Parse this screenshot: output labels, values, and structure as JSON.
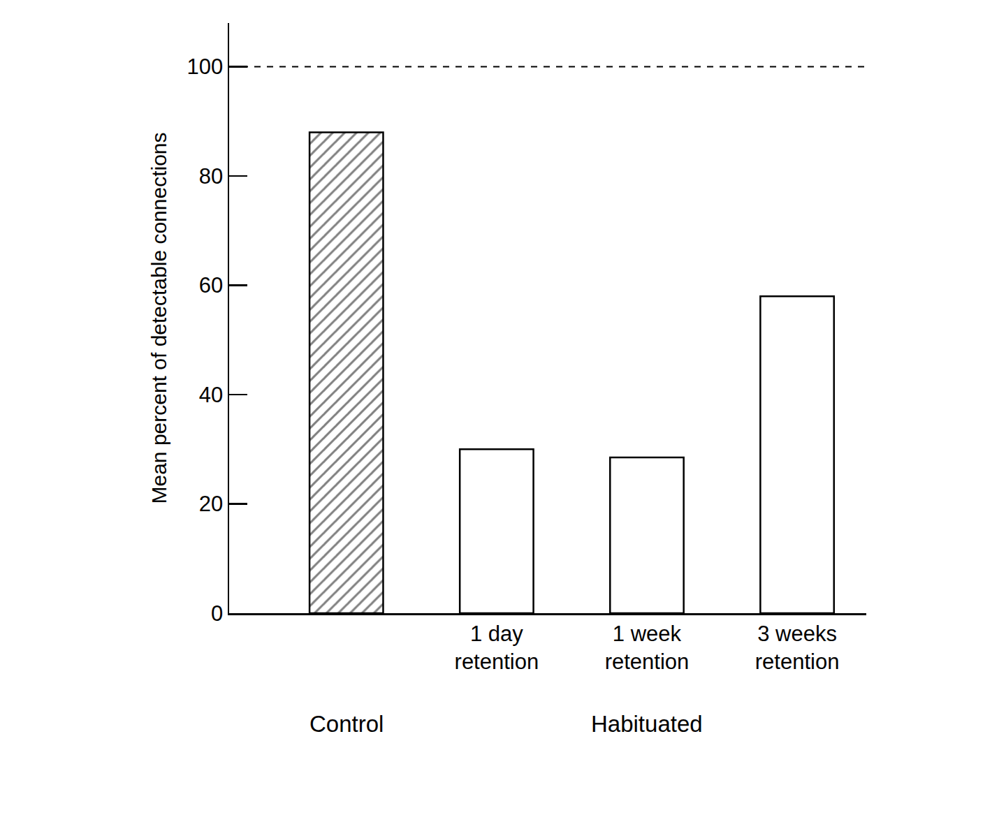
{
  "chart_data": {
    "type": "bar",
    "y_label": "Mean percent of detectable connections",
    "categories": [
      null,
      "1 day\nretention",
      "1 week\nretention",
      "3 weeks\nretention"
    ],
    "series": [
      {
        "values": [
          88,
          null,
          null,
          null
        ],
        "color": "#ffffff",
        "marker": "hatched"
      },
      {
        "values": [
          null,
          30,
          28.5,
          58
        ],
        "color": "#ffffff",
        "marker": "plain"
      }
    ],
    "annotations": [
      {
        "text": "Control",
        "at": 0
      },
      {
        "text": "Habituated",
        "at": 2
      }
    ],
    "reference_line": {
      "value": 100,
      "line_style": "dashed"
    },
    "ylim": [
      0,
      108
    ],
    "yticks": [
      0,
      20,
      40,
      60,
      80,
      100
    ],
    "grid": false
  }
}
